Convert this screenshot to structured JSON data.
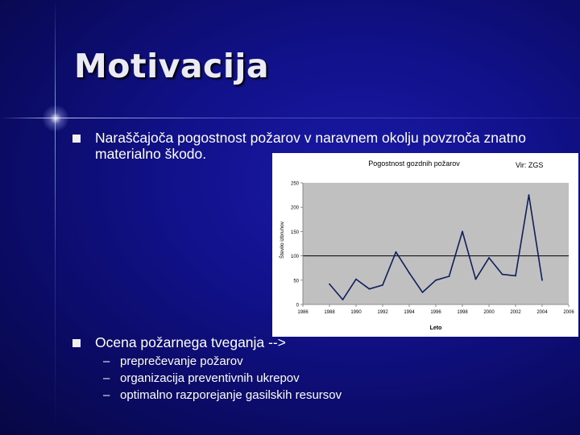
{
  "slide": {
    "title": "Motivacija",
    "bullets": [
      {
        "text_line1": "Naraščajoča pogostnost požarov v naravnem okolju povzroča znatno",
        "text_line2": "materialno škodo."
      },
      {
        "text": "Ocena požarnega tveganja -->",
        "subitems": [
          "preprečevanje požarov",
          "organizacija preventivnih ukrepov",
          "optimalno razporejanje gasilskih resursov"
        ]
      }
    ],
    "sub_dash": "–"
  },
  "colors": {
    "background": "#11118a",
    "text": "#ffffff",
    "series": "#0f1f5c",
    "plot_area": "#c0c0c0"
  },
  "chart_data": {
    "type": "line",
    "title": "Pogostnost gozdnih požarov",
    "source": "Vir: ZGS",
    "xlabel": "Leto",
    "ylabel": "Število izbruhov",
    "xlim": [
      1986,
      2006
    ],
    "ylim": [
      0,
      250
    ],
    "xticks": [
      1986,
      1988,
      1990,
      1992,
      1994,
      1996,
      1998,
      2000,
      2002,
      2004,
      2006
    ],
    "yticks": [
      0,
      50,
      100,
      150,
      200,
      250
    ],
    "reference_line": 100,
    "grid": false,
    "legend": "none",
    "series": [
      {
        "x": [
          1988,
          1989,
          1990,
          1991,
          1992,
          1993,
          1994,
          1995,
          1996,
          1997,
          1998,
          1999,
          2000,
          2001,
          2002,
          2003,
          2004
        ],
        "values": [
          42,
          10,
          52,
          32,
          40,
          108,
          65,
          25,
          50,
          58,
          150,
          52,
          96,
          62,
          59,
          225,
          50
        ]
      }
    ]
  }
}
